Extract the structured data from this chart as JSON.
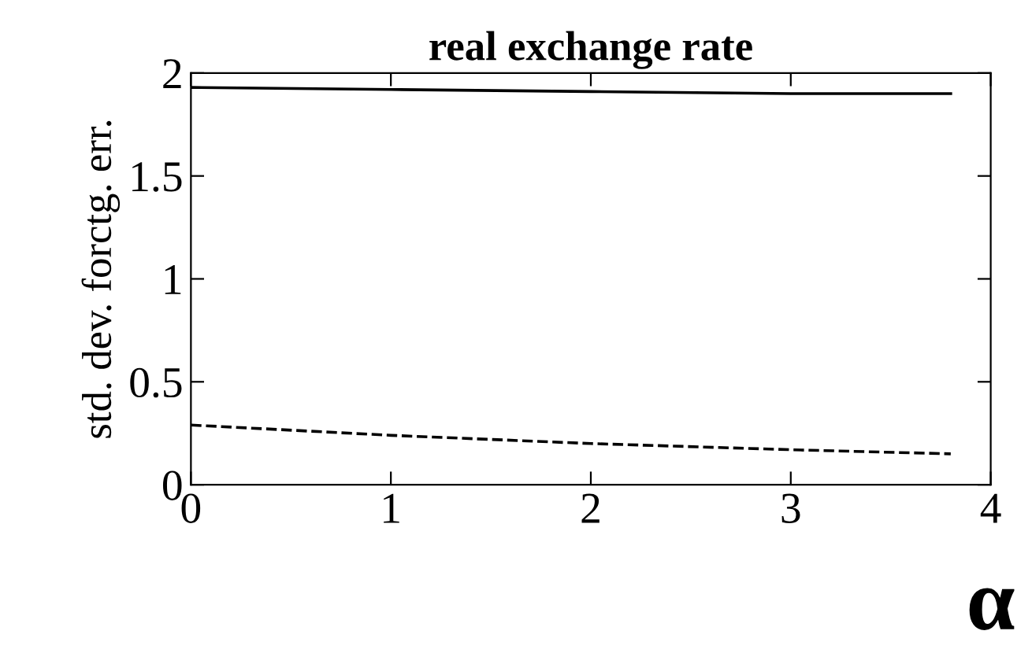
{
  "chart_data": {
    "type": "line",
    "title": "real exchange rate",
    "xlabel": "α",
    "ylabel": "std. dev. forctg. err.",
    "series": [
      {
        "x": [
          0,
          1,
          2,
          3,
          3.8
        ],
        "values": [
          1.93,
          1.92,
          1.91,
          1.9,
          1.9
        ],
        "color": "#000000",
        "line_style": "solid"
      },
      {
        "x": [
          0,
          1,
          2,
          3,
          3.8
        ],
        "values": [
          0.29,
          0.24,
          0.2,
          0.17,
          0.15
        ],
        "color": "#000000",
        "line_style": "dashed"
      }
    ],
    "xlim": [
      0,
      4
    ],
    "ylim": [
      0,
      2
    ],
    "xticks": [
      0,
      1,
      2,
      3,
      4
    ],
    "yticks": [
      0,
      0.5,
      1,
      1.5,
      2
    ],
    "grid": false,
    "legend": false,
    "marker": "none"
  }
}
